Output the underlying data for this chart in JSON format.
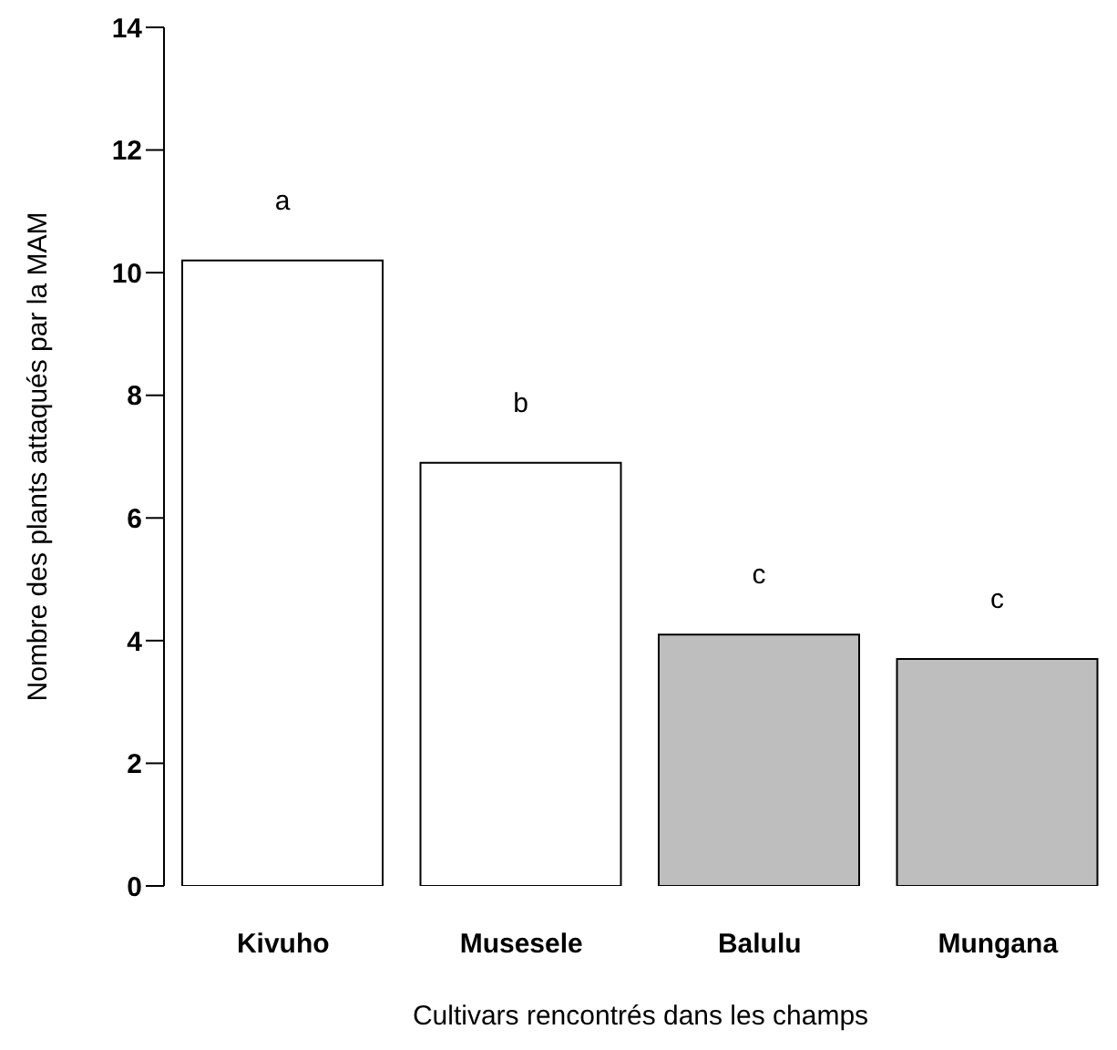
{
  "chart_data": {
    "type": "bar",
    "xlabel": "Cultivars rencontrés dans les champs",
    "ylabel": "Nombre des plants attaqués par la MAM",
    "categories": [
      "Kivuho",
      "Musesele",
      "Balulu",
      "Mungana"
    ],
    "values": [
      10.2,
      6.9,
      4.1,
      3.7
    ],
    "colors": [
      "#ffffff",
      "#ffffff",
      "#bebebe",
      "#bebebe"
    ],
    "ylim": [
      0,
      14
    ],
    "yticks": [
      0,
      2,
      4,
      6,
      8,
      10,
      12,
      14
    ],
    "grid": false,
    "annotations": [
      "a",
      "b",
      "c",
      "c"
    ]
  }
}
